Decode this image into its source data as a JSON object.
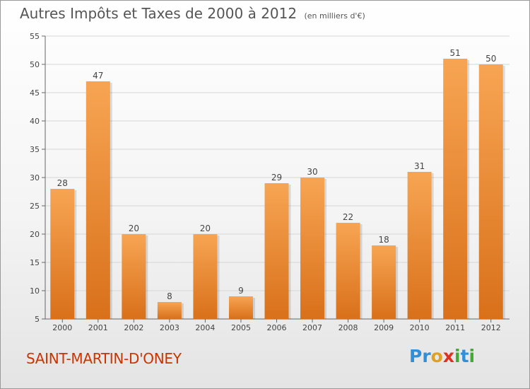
{
  "title": "Autres Impôts et Taxes de 2000 à 2012",
  "subtitle": "(en milliers d'€)",
  "commune": "SAINT-MARTIN-D'ONEY",
  "logo": {
    "letters": [
      "P",
      "r",
      "o",
      "x",
      "i",
      "t",
      "i"
    ],
    "colors": [
      "#2f8fd8",
      "#2f8fd8",
      "#e0a020",
      "#e03020",
      "#44aa33",
      "#2f8fd8",
      "#44aa33"
    ]
  },
  "colors": {
    "bar_top": "#f7a553",
    "bar_bottom": "#d9701a",
    "title": "#555555",
    "commune": "#cc3300"
  },
  "chart_data": {
    "type": "bar",
    "categories": [
      "2000",
      "2001",
      "2002",
      "2003",
      "2004",
      "2005",
      "2006",
      "2007",
      "2008",
      "2009",
      "2010",
      "2011",
      "2012"
    ],
    "values": [
      28,
      47,
      20,
      8,
      20,
      9,
      29,
      30,
      22,
      18,
      31,
      51,
      50
    ],
    "ylim": [
      5,
      55
    ],
    "yticks": [
      5,
      10,
      15,
      20,
      25,
      30,
      35,
      40,
      45,
      50,
      55
    ],
    "grid": true
  }
}
